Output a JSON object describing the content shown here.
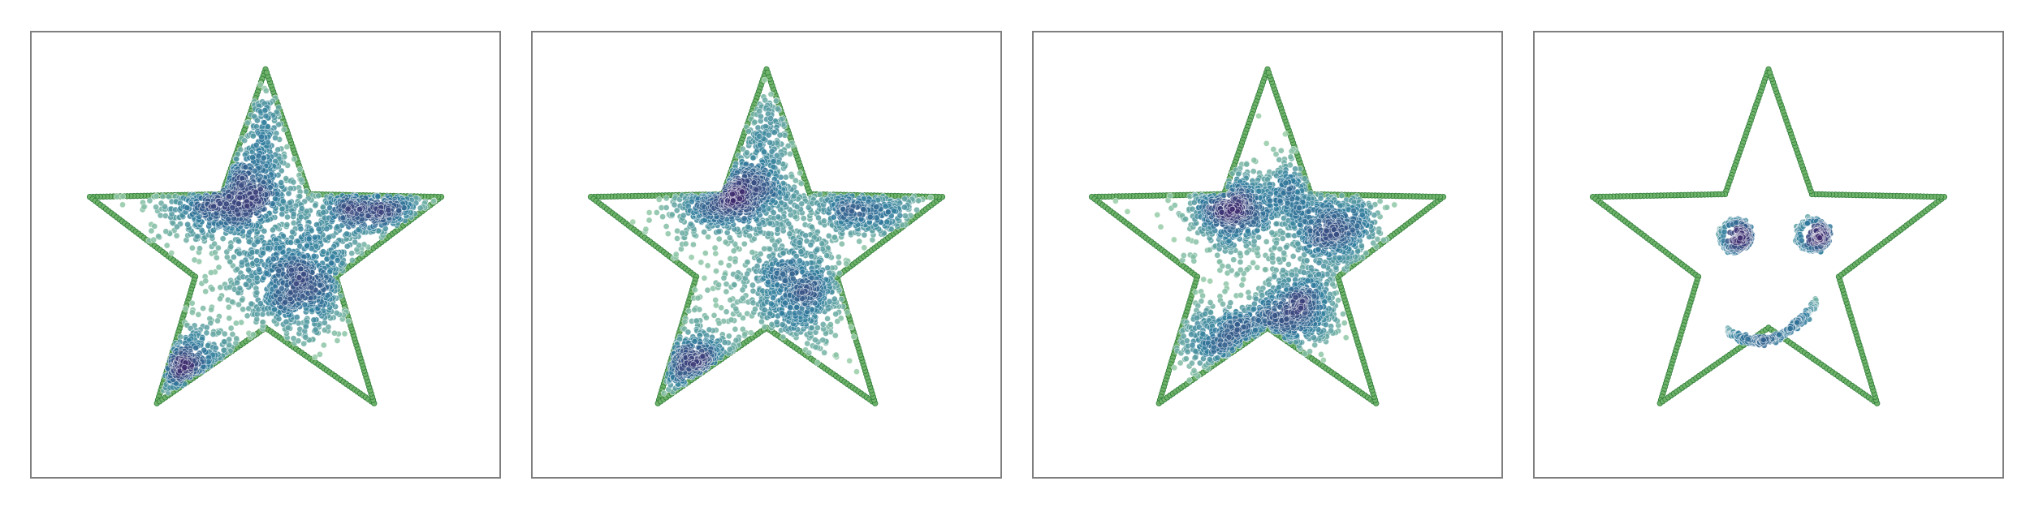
{
  "figure": {
    "colors": {
      "boundary_fill": "#6fb26a",
      "boundary_edge": "#2f7d3a",
      "density_low": "#9fd3a8",
      "density_mid": "#2f7d9e",
      "density_high": "#3d2a6e"
    }
  },
  "chart_data": [
    {
      "type": "scatter",
      "panel": 1,
      "axes_visible": false,
      "grid": false,
      "xlim": [
        -0.5,
        0.5
      ],
      "ylim": [
        -0.5,
        0.5
      ],
      "boundary": {
        "shape": "five-pointed star",
        "outer_radius": 0.5,
        "inner_radius": 0.2
      },
      "series": [
        {
          "role": "boundary",
          "color": "#6fb26a"
        },
        {
          "role": "samples",
          "colormap": "crest",
          "clusters": [
            {
              "cx": -0.1,
              "cy": 0.16,
              "sx": 0.09,
              "sy": 0.06,
              "n": 700
            },
            {
              "cx": 0.1,
              "cy": -0.07,
              "sx": 0.09,
              "sy": 0.08,
              "n": 700
            },
            {
              "cx": 0.28,
              "cy": 0.13,
              "sx": 0.08,
              "sy": 0.04,
              "n": 380
            },
            {
              "cx": -0.21,
              "cy": -0.3,
              "sx": 0.07,
              "sy": 0.05,
              "n": 300
            },
            {
              "cx": 0.0,
              "cy": 0.35,
              "sx": 0.03,
              "sy": 0.07,
              "n": 140
            },
            {
              "cx": 0.0,
              "cy": 0.0,
              "sx": 0.2,
              "sy": 0.16,
              "n": 260
            }
          ]
        }
      ]
    },
    {
      "type": "scatter",
      "panel": 2,
      "axes_visible": false,
      "grid": false,
      "xlim": [
        -0.5,
        0.5
      ],
      "ylim": [
        -0.5,
        0.5
      ],
      "boundary": {
        "shape": "five-pointed star",
        "outer_radius": 0.5,
        "inner_radius": 0.2
      },
      "series": [
        {
          "role": "boundary",
          "color": "#6fb26a"
        },
        {
          "role": "samples",
          "colormap": "crest",
          "clusters": [
            {
              "cx": -0.1,
              "cy": 0.16,
              "sx": 0.08,
              "sy": 0.05,
              "n": 650
            },
            {
              "cx": 0.08,
              "cy": -0.1,
              "sx": 0.08,
              "sy": 0.08,
              "n": 650
            },
            {
              "cx": 0.27,
              "cy": 0.12,
              "sx": 0.08,
              "sy": 0.04,
              "n": 330
            },
            {
              "cx": -0.2,
              "cy": -0.3,
              "sx": 0.07,
              "sy": 0.05,
              "n": 350
            },
            {
              "cx": 0.0,
              "cy": 0.3,
              "sx": 0.04,
              "sy": 0.09,
              "n": 200
            },
            {
              "cx": 0.0,
              "cy": 0.0,
              "sx": 0.2,
              "sy": 0.15,
              "n": 240
            }
          ]
        }
      ]
    },
    {
      "type": "scatter",
      "panel": 3,
      "axes_visible": false,
      "grid": false,
      "xlim": [
        -0.5,
        0.5
      ],
      "ylim": [
        -0.5,
        0.5
      ],
      "boundary": {
        "shape": "five-pointed star",
        "outer_radius": 0.5,
        "inner_radius": 0.2
      },
      "series": [
        {
          "role": "boundary",
          "color": "#6fb26a"
        },
        {
          "role": "samples",
          "colormap": "crest",
          "clusters": [
            {
              "cx": -0.1,
              "cy": 0.12,
              "sx": 0.06,
              "sy": 0.05,
              "n": 520
            },
            {
              "cx": 0.18,
              "cy": 0.07,
              "sx": 0.07,
              "sy": 0.06,
              "n": 520
            },
            {
              "cx": 0.08,
              "cy": -0.15,
              "sx": 0.06,
              "sy": 0.05,
              "n": 420
            },
            {
              "cx": -0.08,
              "cy": -0.23,
              "sx": 0.09,
              "sy": 0.05,
              "n": 430
            },
            {
              "cx": 0.06,
              "cy": 0.18,
              "sx": 0.04,
              "sy": 0.05,
              "n": 170
            },
            {
              "cx": 0.0,
              "cy": 0.0,
              "sx": 0.15,
              "sy": 0.13,
              "n": 260
            }
          ]
        }
      ]
    },
    {
      "type": "scatter",
      "panel": 4,
      "axes_visible": false,
      "grid": false,
      "xlim": [
        -0.5,
        0.5
      ],
      "ylim": [
        -0.5,
        0.5
      ],
      "boundary": {
        "shape": "five-pointed star",
        "outer_radius": 0.5,
        "inner_radius": 0.2
      },
      "series": [
        {
          "role": "boundary",
          "color": "#6fb26a"
        },
        {
          "role": "samples",
          "colormap": "crest",
          "shape": "smiley face",
          "eyes": [
            {
              "cx": -0.09,
              "cy": 0.05,
              "r": 0.04,
              "n_ring": 170,
              "n_pupil": 110,
              "pupil_dx": 0.012
            },
            {
              "cx": 0.12,
              "cy": 0.05,
              "r": 0.04,
              "n_ring": 170,
              "n_pupil": 110,
              "pupil_dx": 0.012
            }
          ],
          "mouth": {
            "cx": 0.0,
            "cy": -0.17,
            "x_from": -0.11,
            "x_to": 0.13,
            "depth": 0.06,
            "n": 320
          }
        }
      ]
    }
  ]
}
